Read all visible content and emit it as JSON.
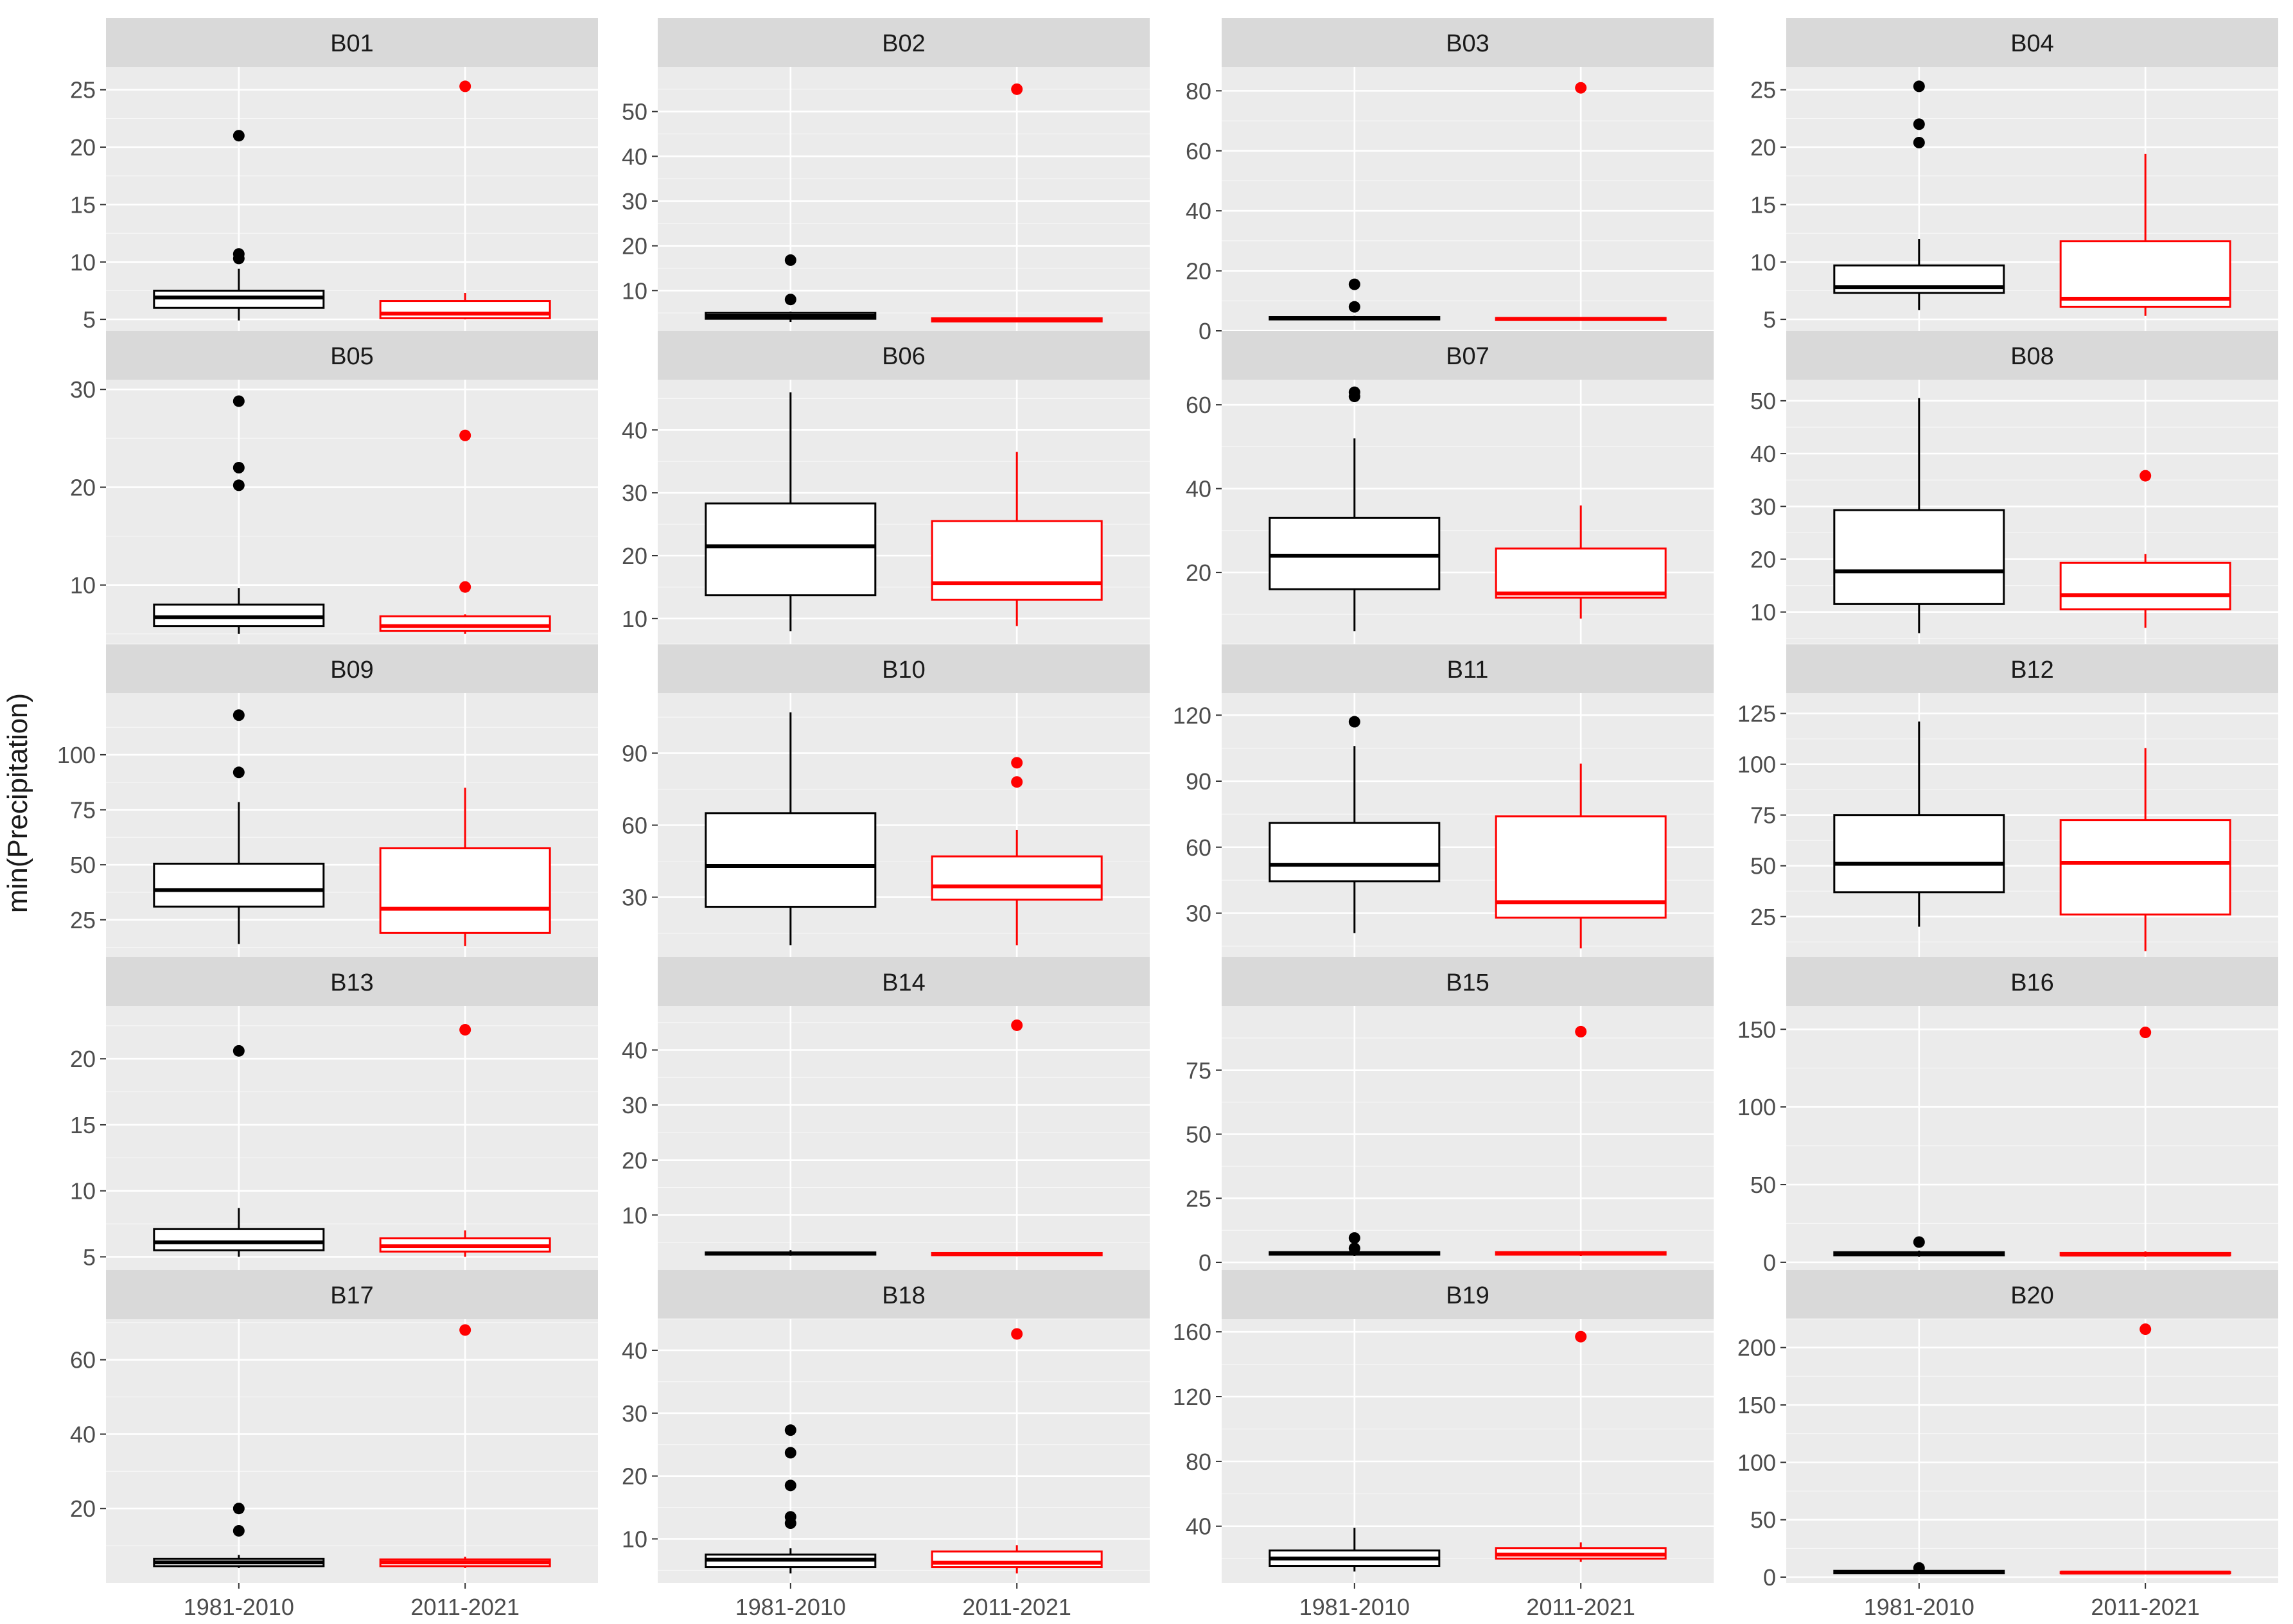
{
  "figure": {
    "y_axis_label": "min(Precipitation)",
    "x_categories": [
      "1981-2010",
      "2011-2021"
    ],
    "colors": {
      "panel_bg": "#EBEBEB",
      "strip_bg": "#D9D9D9",
      "grid_major": "#FFFFFF",
      "series_1981_2010": "#000000",
      "series_2011_2021": "#FF0000",
      "text": "#1A1A1A",
      "tick_text": "#4D4D4D"
    }
  },
  "chart_data": [
    {
      "type": "boxplot",
      "title": "B01",
      "ylim": [
        4,
        27
      ],
      "yticks": [
        5,
        10,
        15,
        20,
        25
      ],
      "categories": [
        "1981-2010",
        "2011-2021"
      ],
      "series": [
        {
          "name": "1981-2010",
          "color": "#000000",
          "lower_whisker": 4.9,
          "q1": 6.0,
          "median": 6.9,
          "q3": 7.5,
          "upper_whisker": 9.4,
          "outliers": [
            10.3,
            10.7,
            21.0
          ]
        },
        {
          "name": "2011-2021",
          "color": "#FF0000",
          "lower_whisker": 5.0,
          "q1": 5.1,
          "median": 5.5,
          "q3": 6.6,
          "upper_whisker": 7.3,
          "outliers": [
            25.3
          ]
        }
      ]
    },
    {
      "type": "boxplot",
      "title": "B02",
      "ylim": [
        1,
        60
      ],
      "yticks": [
        10,
        20,
        30,
        40,
        50
      ],
      "categories": [
        "1981-2010",
        "2011-2021"
      ],
      "series": [
        {
          "name": "1981-2010",
          "color": "#000000",
          "lower_whisker": 3.0,
          "q1": 3.7,
          "median": 4.3,
          "q3": 5.0,
          "upper_whisker": 5.3,
          "outliers": [
            8.0,
            16.8
          ]
        },
        {
          "name": "2011-2021",
          "color": "#FF0000",
          "lower_whisker": 3.0,
          "q1": 3.1,
          "median": 3.5,
          "q3": 3.8,
          "upper_whisker": 4.0,
          "outliers": [
            55.0
          ]
        }
      ]
    },
    {
      "type": "boxplot",
      "title": "B03",
      "ylim": [
        0,
        88
      ],
      "yticks": [
        0,
        20,
        40,
        60,
        80
      ],
      "categories": [
        "1981-2010",
        "2011-2021"
      ],
      "series": [
        {
          "name": "1981-2010",
          "color": "#000000",
          "lower_whisker": 3.5,
          "q1": 3.8,
          "median": 4.2,
          "q3": 4.6,
          "upper_whisker": 5.0,
          "outliers": [
            8.0,
            15.5
          ]
        },
        {
          "name": "2011-2021",
          "color": "#FF0000",
          "lower_whisker": 3.5,
          "q1": 3.6,
          "median": 4.0,
          "q3": 4.3,
          "upper_whisker": 4.5,
          "outliers": [
            81.0
          ]
        }
      ]
    },
    {
      "type": "boxplot",
      "title": "B04",
      "ylim": [
        4,
        27
      ],
      "yticks": [
        5,
        10,
        15,
        20,
        25
      ],
      "categories": [
        "1981-2010",
        "2011-2021"
      ],
      "series": [
        {
          "name": "1981-2010",
          "color": "#000000",
          "lower_whisker": 5.8,
          "q1": 7.3,
          "median": 7.8,
          "q3": 9.7,
          "upper_whisker": 12.0,
          "outliers": [
            20.4,
            22.0,
            25.3
          ]
        },
        {
          "name": "2011-2021",
          "color": "#FF0000",
          "lower_whisker": 5.3,
          "q1": 6.1,
          "median": 6.8,
          "q3": 11.8,
          "upper_whisker": 19.4,
          "outliers": []
        }
      ]
    },
    {
      "type": "boxplot",
      "title": "B05",
      "ylim": [
        4,
        31
      ],
      "yticks": [
        10,
        20,
        30
      ],
      "categories": [
        "1981-2010",
        "2011-2021"
      ],
      "series": [
        {
          "name": "1981-2010",
          "color": "#000000",
          "lower_whisker": 5.0,
          "q1": 5.8,
          "median": 6.7,
          "q3": 8.0,
          "upper_whisker": 9.7,
          "outliers": [
            20.2,
            22.0,
            28.8
          ]
        },
        {
          "name": "2011-2021",
          "color": "#FF0000",
          "lower_whisker": 5.0,
          "q1": 5.3,
          "median": 5.8,
          "q3": 6.8,
          "upper_whisker": 7.0,
          "outliers": [
            9.8,
            25.3
          ]
        }
      ]
    },
    {
      "type": "boxplot",
      "title": "B06",
      "ylim": [
        6,
        48
      ],
      "yticks": [
        10,
        20,
        30,
        40
      ],
      "categories": [
        "1981-2010",
        "2011-2021"
      ],
      "series": [
        {
          "name": "1981-2010",
          "color": "#000000",
          "lower_whisker": 8.0,
          "q1": 13.7,
          "median": 21.5,
          "q3": 28.3,
          "upper_whisker": 46.0,
          "outliers": []
        },
        {
          "name": "2011-2021",
          "color": "#FF0000",
          "lower_whisker": 8.8,
          "q1": 13.0,
          "median": 15.6,
          "q3": 25.5,
          "upper_whisker": 36.5,
          "outliers": []
        }
      ]
    },
    {
      "type": "boxplot",
      "title": "B07",
      "ylim": [
        3,
        66
      ],
      "yticks": [
        20,
        40,
        60
      ],
      "categories": [
        "1981-2010",
        "2011-2021"
      ],
      "series": [
        {
          "name": "1981-2010",
          "color": "#000000",
          "lower_whisker": 6.0,
          "q1": 16.0,
          "median": 24.0,
          "q3": 33.0,
          "upper_whisker": 52.0,
          "outliers": [
            62.0,
            63.0
          ]
        },
        {
          "name": "2011-2021",
          "color": "#FF0000",
          "lower_whisker": 9.0,
          "q1": 14.0,
          "median": 15.0,
          "q3": 25.7,
          "upper_whisker": 36.0,
          "outliers": []
        }
      ]
    },
    {
      "type": "boxplot",
      "title": "B08",
      "ylim": [
        4,
        54
      ],
      "yticks": [
        10,
        20,
        30,
        40,
        50
      ],
      "categories": [
        "1981-2010",
        "2011-2021"
      ],
      "series": [
        {
          "name": "1981-2010",
          "color": "#000000",
          "lower_whisker": 6.0,
          "q1": 11.5,
          "median": 17.7,
          "q3": 29.3,
          "upper_whisker": 50.5,
          "outliers": []
        },
        {
          "name": "2011-2021",
          "color": "#FF0000",
          "lower_whisker": 7.0,
          "q1": 10.5,
          "median": 13.2,
          "q3": 19.3,
          "upper_whisker": 21.0,
          "outliers": [
            35.8
          ]
        }
      ]
    },
    {
      "type": "boxplot",
      "title": "B09",
      "ylim": [
        8,
        128
      ],
      "yticks": [
        25,
        50,
        75,
        100
      ],
      "categories": [
        "1981-2010",
        "2011-2021"
      ],
      "series": [
        {
          "name": "1981-2010",
          "color": "#000000",
          "lower_whisker": 14.0,
          "q1": 31.0,
          "median": 38.5,
          "q3": 50.5,
          "upper_whisker": 78.5,
          "outliers": [
            92.0,
            118.0
          ]
        },
        {
          "name": "2011-2021",
          "color": "#FF0000",
          "lower_whisker": 13.0,
          "q1": 19.0,
          "median": 30.0,
          "q3": 57.5,
          "upper_whisker": 85.0,
          "outliers": []
        }
      ]
    },
    {
      "type": "boxplot",
      "title": "B10",
      "ylim": [
        5,
        115
      ],
      "yticks": [
        30,
        60,
        90
      ],
      "categories": [
        "1981-2010",
        "2011-2021"
      ],
      "series": [
        {
          "name": "1981-2010",
          "color": "#000000",
          "lower_whisker": 10.0,
          "q1": 26.0,
          "median": 43.0,
          "q3": 65.0,
          "upper_whisker": 107.0,
          "outliers": []
        },
        {
          "name": "2011-2021",
          "color": "#FF0000",
          "lower_whisker": 10.0,
          "q1": 29.0,
          "median": 34.5,
          "q3": 47.0,
          "upper_whisker": 58.0,
          "outliers": [
            78.0,
            86.0
          ]
        }
      ]
    },
    {
      "type": "boxplot",
      "title": "B11",
      "ylim": [
        10,
        130
      ],
      "yticks": [
        30,
        60,
        90,
        120
      ],
      "categories": [
        "1981-2010",
        "2011-2021"
      ],
      "series": [
        {
          "name": "1981-2010",
          "color": "#000000",
          "lower_whisker": 21.0,
          "q1": 44.5,
          "median": 52.0,
          "q3": 71.0,
          "upper_whisker": 106.0,
          "outliers": [
            117.0
          ]
        },
        {
          "name": "2011-2021",
          "color": "#FF0000",
          "lower_whisker": 14.0,
          "q1": 28.0,
          "median": 35.0,
          "q3": 74.0,
          "upper_whisker": 98.0,
          "outliers": []
        }
      ]
    },
    {
      "type": "boxplot",
      "title": "B12",
      "ylim": [
        5,
        135
      ],
      "yticks": [
        25,
        50,
        75,
        100,
        125
      ],
      "categories": [
        "1981-2010",
        "2011-2021"
      ],
      "series": [
        {
          "name": "1981-2010",
          "color": "#000000",
          "lower_whisker": 20.0,
          "q1": 37.0,
          "median": 51.0,
          "q3": 75.0,
          "upper_whisker": 121.0,
          "outliers": []
        },
        {
          "name": "2011-2021",
          "color": "#FF0000",
          "lower_whisker": 8.0,
          "q1": 26.0,
          "median": 51.5,
          "q3": 72.5,
          "upper_whisker": 108.0,
          "outliers": []
        }
      ]
    },
    {
      "type": "boxplot",
      "title": "B13",
      "ylim": [
        4,
        24
      ],
      "yticks": [
        5,
        10,
        15,
        20
      ],
      "categories": [
        "1981-2010",
        "2011-2021"
      ],
      "series": [
        {
          "name": "1981-2010",
          "color": "#000000",
          "lower_whisker": 5.0,
          "q1": 5.5,
          "median": 6.1,
          "q3": 7.1,
          "upper_whisker": 8.7,
          "outliers": [
            20.6
          ]
        },
        {
          "name": "2011-2021",
          "color": "#FF0000",
          "lower_whisker": 5.0,
          "q1": 5.4,
          "median": 5.8,
          "q3": 6.4,
          "upper_whisker": 7.0,
          "outliers": [
            22.2
          ]
        }
      ]
    },
    {
      "type": "boxplot",
      "title": "B14",
      "ylim": [
        0,
        48
      ],
      "yticks": [
        10,
        20,
        30,
        40
      ],
      "categories": [
        "1981-2010",
        "2011-2021"
      ],
      "series": [
        {
          "name": "1981-2010",
          "color": "#000000",
          "lower_whisker": 2.6,
          "q1": 2.8,
          "median": 3.0,
          "q3": 3.2,
          "upper_whisker": 3.6,
          "outliers": []
        },
        {
          "name": "2011-2021",
          "color": "#FF0000",
          "lower_whisker": 2.5,
          "q1": 2.7,
          "median": 2.9,
          "q3": 3.1,
          "upper_whisker": 3.3,
          "outliers": [
            44.5
          ]
        }
      ]
    },
    {
      "type": "boxplot",
      "title": "B15",
      "ylim": [
        -3,
        100
      ],
      "yticks": [
        0,
        25,
        50,
        75
      ],
      "categories": [
        "1981-2010",
        "2011-2021"
      ],
      "series": [
        {
          "name": "1981-2010",
          "color": "#000000",
          "lower_whisker": 2.5,
          "q1": 3.0,
          "median": 3.5,
          "q3": 4.0,
          "upper_whisker": 4.5,
          "outliers": [
            5.5,
            9.5
          ]
        },
        {
          "name": "2011-2021",
          "color": "#FF0000",
          "lower_whisker": 2.5,
          "q1": 3.0,
          "median": 3.5,
          "q3": 4.0,
          "upper_whisker": 4.3,
          "outliers": [
            90.0
          ]
        }
      ]
    },
    {
      "type": "boxplot",
      "title": "B16",
      "ylim": [
        -5,
        165
      ],
      "yticks": [
        0,
        50,
        100,
        150
      ],
      "categories": [
        "1981-2010",
        "2011-2021"
      ],
      "series": [
        {
          "name": "1981-2010",
          "color": "#000000",
          "lower_whisker": 3.5,
          "q1": 4.5,
          "median": 5.5,
          "q3": 6.5,
          "upper_whisker": 7.5,
          "outliers": [
            13.0
          ]
        },
        {
          "name": "2011-2021",
          "color": "#FF0000",
          "lower_whisker": 3.5,
          "q1": 4.5,
          "median": 5.0,
          "q3": 6.0,
          "upper_whisker": 7.0,
          "outliers": [
            148.0
          ]
        }
      ]
    },
    {
      "type": "boxplot",
      "title": "B17",
      "ylim": [
        0,
        71
      ],
      "yticks": [
        20,
        40,
        60
      ],
      "categories": [
        "1981-2010",
        "2011-2021"
      ],
      "series": [
        {
          "name": "1981-2010",
          "color": "#000000",
          "lower_whisker": 4.0,
          "q1": 4.5,
          "median": 5.5,
          "q3": 6.5,
          "upper_whisker": 7.5,
          "outliers": [
            14.0,
            20.0
          ]
        },
        {
          "name": "2011-2021",
          "color": "#FF0000",
          "lower_whisker": 4.0,
          "q1": 4.5,
          "median": 5.5,
          "q3": 6.3,
          "upper_whisker": 7.0,
          "outliers": [
            68.0
          ]
        }
      ]
    },
    {
      "type": "boxplot",
      "title": "B18",
      "ylim": [
        3,
        45
      ],
      "yticks": [
        10,
        20,
        30,
        40
      ],
      "categories": [
        "1981-2010",
        "2011-2021"
      ],
      "series": [
        {
          "name": "1981-2010",
          "color": "#000000",
          "lower_whisker": 4.5,
          "q1": 5.5,
          "median": 6.7,
          "q3": 7.5,
          "upper_whisker": 8.5,
          "outliers": [
            12.5,
            13.5,
            18.5,
            23.7,
            27.3
          ]
        },
        {
          "name": "2011-2021",
          "color": "#FF0000",
          "lower_whisker": 4.5,
          "q1": 5.5,
          "median": 6.2,
          "q3": 8.0,
          "upper_whisker": 9.0,
          "outliers": [
            42.6
          ]
        }
      ]
    },
    {
      "type": "boxplot",
      "title": "B19",
      "ylim": [
        5,
        168
      ],
      "yticks": [
        40,
        80,
        120,
        160
      ],
      "categories": [
        "1981-2010",
        "2011-2021"
      ],
      "series": [
        {
          "name": "1981-2010",
          "color": "#000000",
          "lower_whisker": 12.0,
          "q1": 15.5,
          "median": 20.0,
          "q3": 25.0,
          "upper_whisker": 39.0,
          "outliers": []
        },
        {
          "name": "2011-2021",
          "color": "#FF0000",
          "lower_whisker": 18.0,
          "q1": 20.0,
          "median": 22.5,
          "q3": 26.5,
          "upper_whisker": 30.0,
          "outliers": [
            157.0
          ]
        }
      ]
    },
    {
      "type": "boxplot",
      "title": "B20",
      "ylim": [
        -5,
        225
      ],
      "yticks": [
        0,
        50,
        100,
        150,
        200
      ],
      "categories": [
        "1981-2010",
        "2011-2021"
      ],
      "series": [
        {
          "name": "1981-2010",
          "color": "#000000",
          "lower_whisker": 3.0,
          "q1": 3.5,
          "median": 4.5,
          "q3": 5.5,
          "upper_whisker": 6.5,
          "outliers": [
            8.0
          ]
        },
        {
          "name": "2011-2021",
          "color": "#FF0000",
          "lower_whisker": 3.0,
          "q1": 3.5,
          "median": 4.0,
          "q3": 4.5,
          "upper_whisker": 5.0,
          "outliers": [
            216.0
          ]
        }
      ]
    }
  ]
}
